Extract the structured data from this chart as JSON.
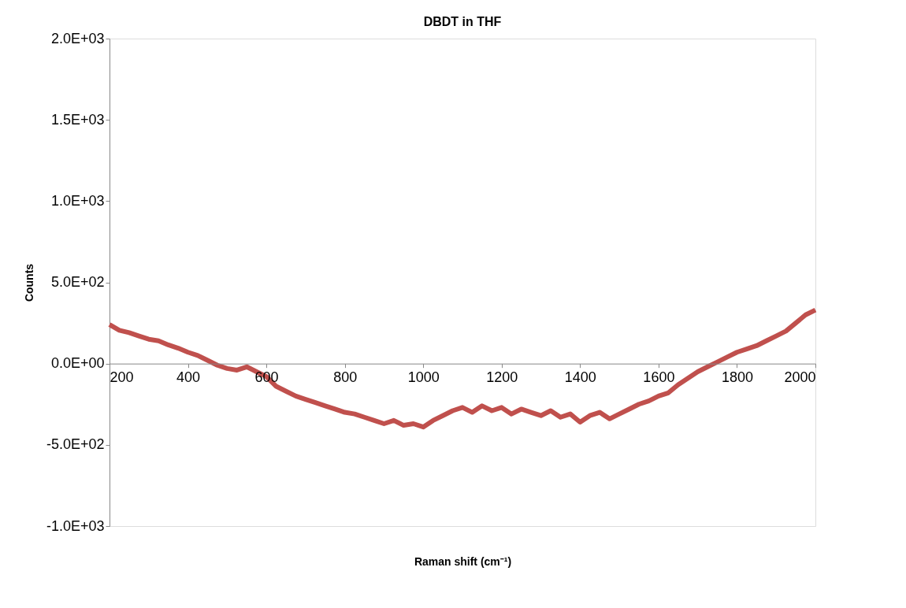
{
  "chart_data": {
    "type": "line",
    "title": "DBDT in THF",
    "xlabel": "Raman shift (cm⁻¹)",
    "ylabel": "Counts",
    "x": [
      200,
      225,
      250,
      275,
      300,
      325,
      350,
      375,
      400,
      425,
      450,
      475,
      500,
      525,
      550,
      575,
      600,
      625,
      650,
      675,
      700,
      725,
      750,
      775,
      800,
      825,
      850,
      875,
      900,
      925,
      950,
      975,
      1000,
      1025,
      1050,
      1075,
      1100,
      1125,
      1150,
      1175,
      1200,
      1225,
      1250,
      1275,
      1300,
      1325,
      1350,
      1375,
      1400,
      1425,
      1450,
      1475,
      1500,
      1525,
      1550,
      1575,
      1600,
      1625,
      1650,
      1675,
      1700,
      1725,
      1750,
      1775,
      1800,
      1825,
      1850,
      1875,
      1900,
      1925,
      1950,
      1975,
      2000
    ],
    "series": [
      {
        "color": "#c0504d",
        "values": [
          240,
          205,
          190,
          170,
          150,
          140,
          115,
          95,
          70,
          50,
          20,
          -10,
          -30,
          -40,
          -20,
          -50,
          -80,
          -140,
          -170,
          -200,
          -220,
          -240,
          -260,
          -280,
          -300,
          -310,
          -330,
          -350,
          -370,
          -350,
          -380,
          -370,
          -390,
          -350,
          -320,
          -290,
          -270,
          -300,
          -260,
          -290,
          -270,
          -310,
          -280,
          -300,
          -320,
          -290,
          -330,
          -310,
          -360,
          -320,
          -300,
          -340,
          -310,
          -280,
          -250,
          -230,
          -200,
          -180,
          -130,
          -90,
          -50,
          -20,
          10,
          40,
          70,
          90,
          110,
          140,
          170,
          200,
          250,
          300,
          330
        ]
      }
    ],
    "xlim": [
      200,
      2000
    ],
    "xticks": [
      200,
      400,
      600,
      800,
      1000,
      1200,
      1400,
      1600,
      1800,
      2000
    ],
    "ylim": [
      -1000,
      2000
    ],
    "yticks": [
      {
        "value": -1000,
        "label": "-1.0E+03"
      },
      {
        "value": -500,
        "label": "-5.0E+02"
      },
      {
        "value": 0,
        "label": "0.0E+00"
      },
      {
        "value": 500,
        "label": "5.0E+02"
      },
      {
        "value": 1000,
        "label": "1.0E+03"
      },
      {
        "value": 1500,
        "label": "1.5E+03"
      },
      {
        "value": 2000,
        "label": "2.0E+03"
      }
    ],
    "grid": false,
    "marker": "none",
    "line_style": "solid"
  }
}
